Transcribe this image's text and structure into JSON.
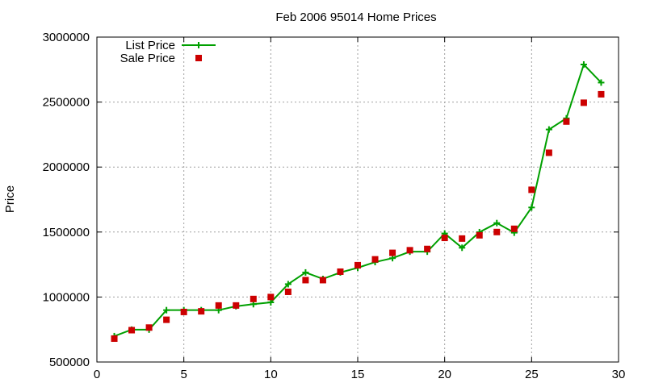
{
  "chart_data": {
    "type": "line",
    "title": "Feb 2006 95014 Home Prices",
    "xlabel": "",
    "ylabel": "Price",
    "xlim": [
      0,
      30
    ],
    "ylim": [
      500000,
      3000000
    ],
    "x_ticks": [
      0,
      5,
      10,
      15,
      20,
      25,
      30
    ],
    "y_ticks": [
      500000,
      1000000,
      1500000,
      2000000,
      2500000,
      3000000
    ],
    "grid": true,
    "legend_position": "top-left",
    "series": [
      {
        "name": "List Price",
        "style": "line-plus",
        "color": "#00a000",
        "x": [
          1,
          2,
          3,
          4,
          5,
          6,
          7,
          8,
          9,
          10,
          11,
          12,
          13,
          14,
          15,
          16,
          17,
          18,
          19,
          20,
          21,
          22,
          23,
          24,
          25,
          26,
          27,
          28,
          29
        ],
        "values": [
          699000,
          749000,
          749000,
          899000,
          899000,
          899000,
          899000,
          929000,
          945000,
          959000,
          1099000,
          1189000,
          1139000,
          1189000,
          1225000,
          1269000,
          1299000,
          1349000,
          1349000,
          1489000,
          1379000,
          1499000,
          1569000,
          1495000,
          1689000,
          2289000,
          2375000,
          2789000,
          2650000
        ]
      },
      {
        "name": "Sale Price",
        "style": "square",
        "color": "#cc0000",
        "x": [
          1,
          2,
          3,
          4,
          5,
          6,
          7,
          8,
          9,
          10,
          11,
          12,
          13,
          14,
          15,
          16,
          17,
          18,
          19,
          20,
          21,
          22,
          23,
          24,
          25,
          26,
          27,
          28,
          29
        ],
        "values": [
          680000,
          745000,
          765000,
          825000,
          885000,
          890000,
          935000,
          935000,
          985000,
          1000000,
          1040000,
          1130000,
          1130000,
          1195000,
          1245000,
          1290000,
          1340000,
          1360000,
          1370000,
          1455000,
          1450000,
          1475000,
          1500000,
          1525000,
          1825000,
          2110000,
          2350000,
          2495000,
          2560000
        ]
      }
    ]
  }
}
